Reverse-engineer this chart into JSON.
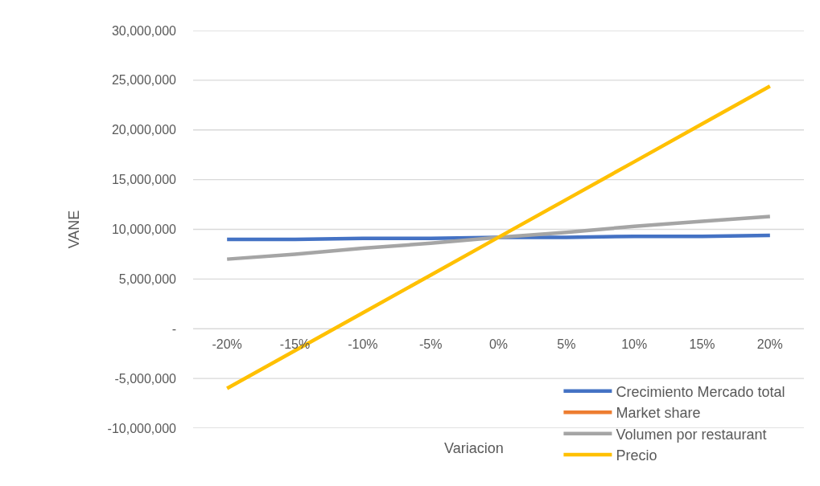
{
  "chart_data": {
    "type": "line",
    "xlabel": "Variacion",
    "ylabel": "VANE",
    "categories": [
      "-20%",
      "-15%",
      "-10%",
      "-5%",
      "0%",
      "5%",
      "10%",
      "15%",
      "20%"
    ],
    "series": [
      {
        "name": "Crecimiento Mercado total",
        "color": "#4472c4",
        "values": [
          9000000,
          9000000,
          9100000,
          9100000,
          9200000,
          9200000,
          9300000,
          9300000,
          9400000
        ]
      },
      {
        "name": "Market share",
        "color": "#ed7d31",
        "values": [
          null,
          null,
          null,
          null,
          null,
          null,
          null,
          null,
          null
        ]
      },
      {
        "name": "Volumen por restaurant",
        "color": "#a5a5a5",
        "values": [
          7000000,
          7500000,
          8100000,
          8600000,
          9200000,
          9700000,
          10300000,
          10800000,
          11300000
        ]
      },
      {
        "name": "Precio",
        "color": "#ffc000",
        "values": [
          -6000000,
          -2200000,
          1600000,
          5400000,
          9200000,
          13000000,
          16800000,
          20600000,
          24400000
        ]
      }
    ],
    "ylim": [
      -10000000,
      30000000
    ],
    "yticks": [
      {
        "value": -10000000,
        "label": "-10,000,000"
      },
      {
        "value": -5000000,
        "label": "-5,000,000"
      },
      {
        "value": 0,
        "label": "-"
      },
      {
        "value": 5000000,
        "label": "5,000,000"
      },
      {
        "value": 10000000,
        "label": "10,000,000"
      },
      {
        "value": 15000000,
        "label": "15,000,000"
      },
      {
        "value": 20000000,
        "label": "20,000,000"
      },
      {
        "value": 25000000,
        "label": "25,000,000"
      },
      {
        "value": 30000000,
        "label": "30,000,000"
      }
    ],
    "grid": "y",
    "legend": "bottom right",
    "marker": "none",
    "line_style": "solid"
  }
}
